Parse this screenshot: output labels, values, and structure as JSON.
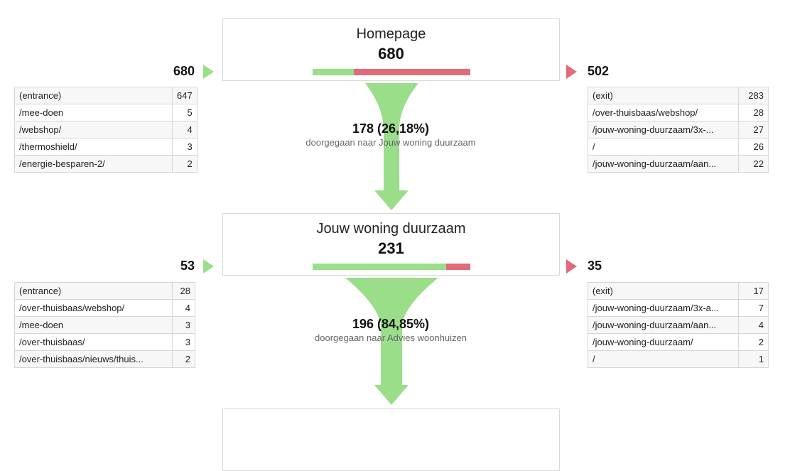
{
  "steps": [
    {
      "name": "Homepage",
      "count": "680",
      "continued_fraction": 0.2618,
      "inflow": "680",
      "outflow": "502",
      "flow_value": "178 (26,18%)",
      "flow_desc": "doorgegaan naar Jouw woning duurzaam",
      "sources": [
        {
          "page": "(entrance)",
          "count": "647"
        },
        {
          "page": "/mee-doen",
          "count": "5"
        },
        {
          "page": "/webshop/",
          "count": "4"
        },
        {
          "page": "/thermoshield/",
          "count": "3"
        },
        {
          "page": "/energie-besparen-2/",
          "count": "2"
        }
      ],
      "exits": [
        {
          "page": "(exit)",
          "count": "283"
        },
        {
          "page": "/over-thuisbaas/webshop/",
          "count": "28"
        },
        {
          "page": "/jouw-woning-duurzaam/3x-...",
          "count": "27"
        },
        {
          "page": "/",
          "count": "26"
        },
        {
          "page": "/jouw-woning-duurzaam/aan...",
          "count": "22"
        }
      ]
    },
    {
      "name": "Jouw woning duurzaam",
      "count": "231",
      "continued_fraction": 0.8485,
      "inflow": "53",
      "outflow": "35",
      "flow_value": "196 (84,85%)",
      "flow_desc": "doorgegaan naar Advies woonhuizen",
      "sources": [
        {
          "page": "(entrance)",
          "count": "28"
        },
        {
          "page": "/over-thuisbaas/webshop/",
          "count": "4"
        },
        {
          "page": "/mee-doen",
          "count": "3"
        },
        {
          "page": "/over-thuisbaas/",
          "count": "3"
        },
        {
          "page": "/over-thuisbaas/nieuws/thuis...",
          "count": "2"
        }
      ],
      "exits": [
        {
          "page": "(exit)",
          "count": "17"
        },
        {
          "page": "/jouw-woning-duurzaam/3x-a...",
          "count": "7"
        },
        {
          "page": "/jouw-woning-duurzaam/aan...",
          "count": "4"
        },
        {
          "page": "/jouw-woning-duurzaam/",
          "count": "2"
        },
        {
          "page": "/",
          "count": "1"
        }
      ]
    }
  ],
  "colors": {
    "continued": "#9ade8a",
    "dropoff": "#e06b79"
  }
}
